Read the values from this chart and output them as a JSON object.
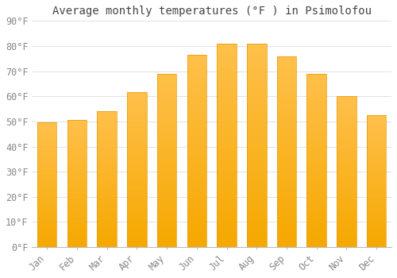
{
  "title": "Average monthly temperatures (°F ) in Psimolofou",
  "months": [
    "Jan",
    "Feb",
    "Mar",
    "Apr",
    "May",
    "Jun",
    "Jul",
    "Aug",
    "Sep",
    "Oct",
    "Nov",
    "Dec"
  ],
  "values": [
    49.5,
    50.5,
    54,
    61.5,
    69,
    76.5,
    81,
    81,
    76,
    69,
    60,
    52.5
  ],
  "bar_color_top": "#FFC04C",
  "bar_color_bottom": "#F5A800",
  "bar_edge_color": "#E89A00",
  "background_color": "#FFFFFF",
  "grid_color": "#DDDDDD",
  "ylim": [
    0,
    90
  ],
  "yticks": [
    0,
    10,
    20,
    30,
    40,
    50,
    60,
    70,
    80,
    90
  ],
  "title_fontsize": 10,
  "tick_fontsize": 8.5,
  "title_font": "monospace",
  "tick_font": "monospace",
  "tick_color": "#888888",
  "title_color": "#444444"
}
